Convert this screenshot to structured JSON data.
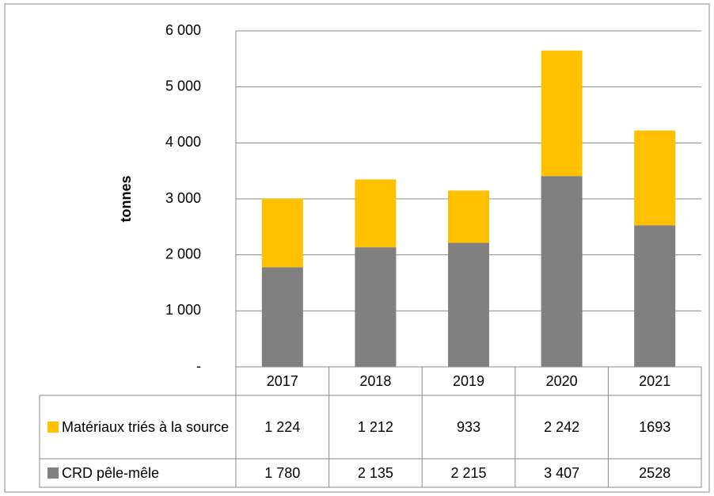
{
  "chart_data": {
    "type": "stacked_bar",
    "y_label": "tonnes",
    "categories": [
      "2017",
      "2018",
      "2019",
      "2020",
      "2021"
    ],
    "series": [
      {
        "name": "Matériaux triés à la source",
        "color": "#ffc000",
        "values": [
          1224,
          1212,
          933,
          2242,
          1693
        ],
        "value_labels": [
          "1 224",
          "1 212",
          "933",
          "2 242",
          "1693"
        ]
      },
      {
        "name": "CRD pêle-mêle",
        "color": "#808080",
        "values": [
          1780,
          2135,
          2215,
          3407,
          2528
        ],
        "value_labels": [
          "1 780",
          "2 135",
          "2 215",
          "3 407",
          "2528"
        ]
      }
    ],
    "ylim": [
      0,
      6000
    ],
    "yticks": [
      {
        "value": 0,
        "label": "-"
      },
      {
        "value": 1000,
        "label": "1 000"
      },
      {
        "value": 2000,
        "label": "2 000"
      },
      {
        "value": 3000,
        "label": "3 000"
      },
      {
        "value": 4000,
        "label": "4 000"
      },
      {
        "value": 5000,
        "label": "5 000"
      },
      {
        "value": 6000,
        "label": "6 000"
      }
    ],
    "grid": true
  }
}
